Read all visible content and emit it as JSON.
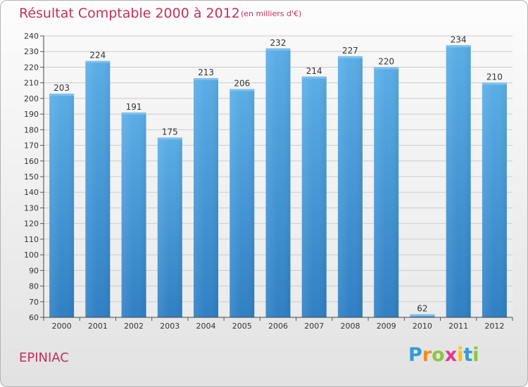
{
  "header": {
    "title": "Résultat Comptable 2000 à 2012",
    "unit_note": "(en milliers d'€)"
  },
  "footer": {
    "commune": "EPINIAC",
    "brand": [
      "P",
      "r",
      "o",
      "x",
      "i",
      "t",
      "i"
    ]
  },
  "colors": {
    "title": "#c4305c",
    "bar_top": "#5aade6",
    "bar_bottom": "#2f7fc3",
    "grid": "#cccccc"
  },
  "chart_data": {
    "type": "bar",
    "categories": [
      "2000",
      "2001",
      "2002",
      "2003",
      "2004",
      "2005",
      "2006",
      "2007",
      "2008",
      "2009",
      "2010",
      "2011",
      "2012"
    ],
    "values": [
      203,
      224,
      191,
      175,
      213,
      206,
      232,
      214,
      227,
      220,
      62,
      234,
      210
    ],
    "title": "Résultat Comptable 2000 à 2012",
    "subtitle": "(en milliers d'€)",
    "xlabel": "",
    "ylabel": "",
    "ylim": [
      60,
      240
    ],
    "yticks": [
      60,
      70,
      80,
      90,
      100,
      110,
      120,
      130,
      140,
      150,
      160,
      170,
      180,
      190,
      200,
      210,
      220,
      230,
      240
    ],
    "grid": true,
    "data_labels": true
  }
}
